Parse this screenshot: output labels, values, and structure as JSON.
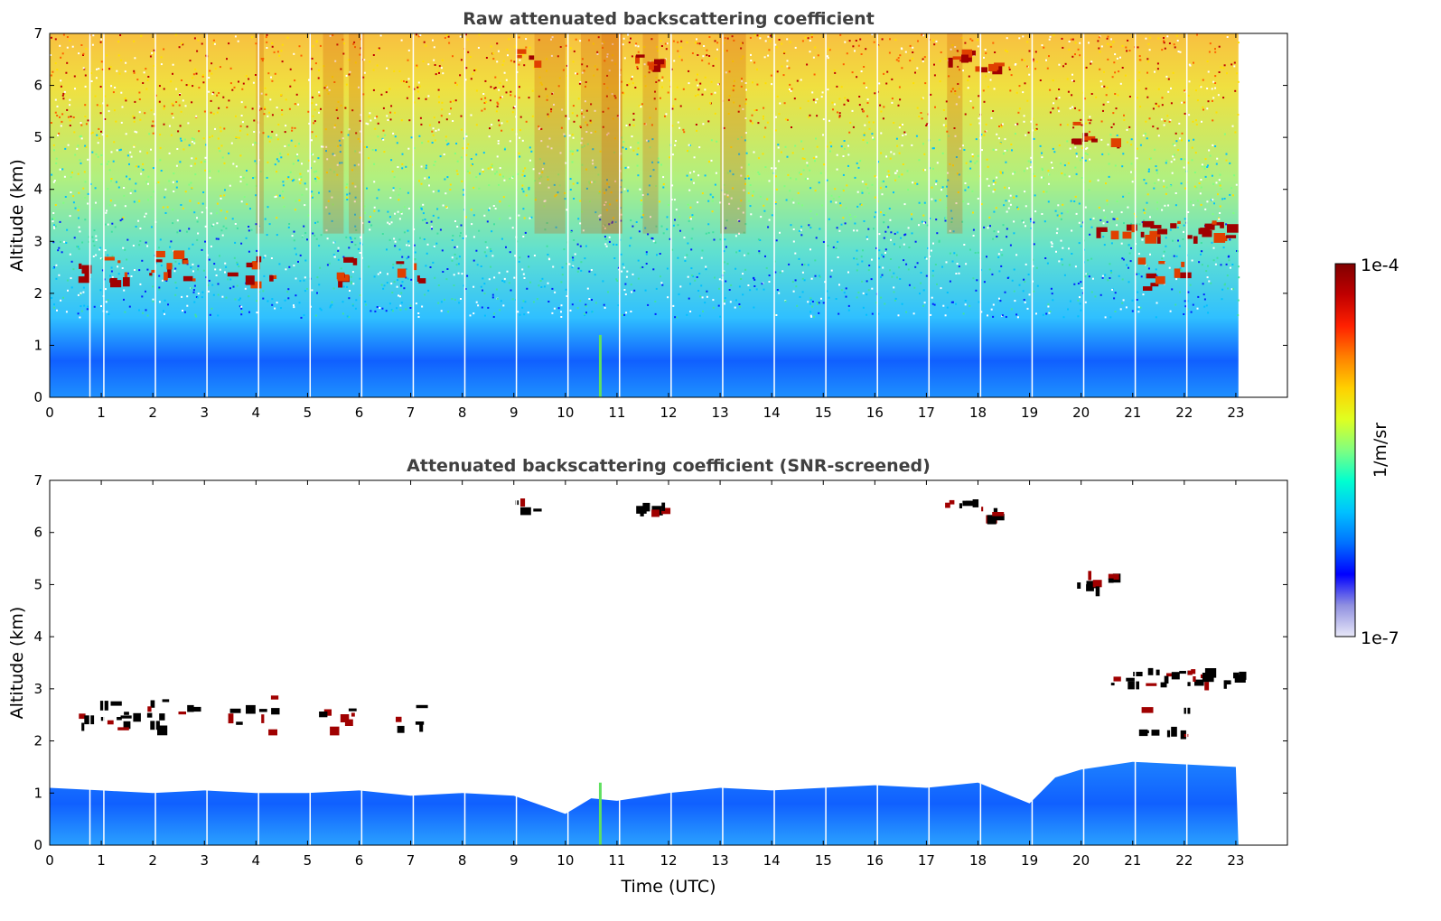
{
  "chart_data": [
    {
      "type": "heatmap",
      "title": "Raw attenuated backscattering coefficient",
      "xlabel": "",
      "ylabel": "Altitude (km)",
      "xlim": [
        0,
        24
      ],
      "ylim": [
        0,
        7
      ],
      "x_ticks": [
        "0",
        "1",
        "2",
        "3",
        "4",
        "5",
        "6",
        "7",
        "8",
        "9",
        "10",
        "11",
        "12",
        "13",
        "14",
        "15",
        "16",
        "17",
        "18",
        "19",
        "20",
        "21",
        "22",
        "23"
      ],
      "y_ticks": [
        "0",
        "1",
        "2",
        "3",
        "4",
        "5",
        "6",
        "7"
      ],
      "data_extent_x": [
        0,
        23.05
      ],
      "data_gaps_hours": [
        0.78,
        1.05,
        2.05,
        3.05,
        4.05,
        5.05,
        6.05,
        7.05,
        8.05,
        9.05,
        10.05,
        11.05,
        12.05,
        13.05,
        14.05,
        15.05,
        16.05,
        17.05,
        18.05,
        19.05,
        20.05,
        21.05,
        22.05
      ],
      "features": [
        {
          "kind": "aerosol_layer",
          "x": [
            0.5,
            2.9
          ],
          "y": [
            2.2,
            2.85
          ],
          "level": "high"
        },
        {
          "kind": "aerosol_layer",
          "x": [
            3.4,
            4.3
          ],
          "y": [
            2.2,
            2.9
          ],
          "level": "high"
        },
        {
          "kind": "aerosol_layer",
          "x": [
            5.2,
            5.9
          ],
          "y": [
            2.2,
            2.7
          ],
          "level": "high"
        },
        {
          "kind": "aerosol_layer",
          "x": [
            6.7,
            7.2
          ],
          "y": [
            2.2,
            2.7
          ],
          "level": "high"
        },
        {
          "kind": "cloud",
          "x": [
            9.0,
            9.4
          ],
          "y": [
            6.45,
            6.7
          ],
          "level": "high"
        },
        {
          "kind": "cloud",
          "x": [
            11.3,
            12.0
          ],
          "y": [
            6.4,
            6.6
          ],
          "level": "high"
        },
        {
          "kind": "cloud",
          "x": [
            17.3,
            17.9
          ],
          "y": [
            6.5,
            6.7
          ],
          "level": "high"
        },
        {
          "kind": "cloud",
          "x": [
            17.8,
            18.4
          ],
          "y": [
            6.3,
            6.5
          ],
          "level": "high"
        },
        {
          "kind": "cloud",
          "x": [
            19.8,
            20.7
          ],
          "y": [
            4.9,
            5.3
          ],
          "level": "high"
        },
        {
          "kind": "cloud",
          "x": [
            20.2,
            23.1
          ],
          "y": [
            3.1,
            3.4
          ],
          "level": "high"
        },
        {
          "kind": "aerosol_layer",
          "x": [
            21.1,
            22.0
          ],
          "y": [
            2.1,
            2.7
          ],
          "level": "high"
        },
        {
          "kind": "boundary_layer",
          "x": [
            0,
            23.05
          ],
          "y": [
            0,
            1.0
          ],
          "level": "low"
        }
      ]
    },
    {
      "type": "heatmap",
      "title": "Attenuated backscattering coefficient (SNR-screened)",
      "xlabel": "Time (UTC)",
      "ylabel": "Altitude (km)",
      "xlim": [
        0,
        24
      ],
      "ylim": [
        0,
        7
      ],
      "x_ticks": [
        "0",
        "1",
        "2",
        "3",
        "4",
        "5",
        "6",
        "7",
        "8",
        "9",
        "10",
        "11",
        "12",
        "13",
        "14",
        "15",
        "16",
        "17",
        "18",
        "19",
        "20",
        "21",
        "22",
        "23"
      ],
      "y_ticks": [
        "0",
        "1",
        "2",
        "3",
        "4",
        "5",
        "6",
        "7"
      ],
      "data_extent_x": [
        0,
        23.05
      ],
      "boundary_layer_top": {
        "x": [
          0,
          1,
          2,
          3,
          4,
          5,
          6,
          7,
          8,
          9,
          10,
          10.5,
          11,
          12,
          13,
          14,
          15,
          16,
          17,
          18,
          19,
          19.5,
          20,
          21,
          22,
          23
        ],
        "y": [
          1.1,
          1.05,
          1.0,
          1.05,
          1.0,
          1.0,
          1.05,
          0.95,
          1.0,
          0.95,
          0.6,
          0.9,
          0.85,
          1.0,
          1.1,
          1.05,
          1.1,
          1.15,
          1.1,
          1.2,
          0.8,
          1.3,
          1.45,
          1.6,
          1.55,
          1.5
        ]
      },
      "features": [
        {
          "kind": "aerosol_layer",
          "x": [
            0.5,
            2.9
          ],
          "y": [
            2.2,
            2.85
          ],
          "level": "high"
        },
        {
          "kind": "aerosol_layer",
          "x": [
            3.4,
            4.3
          ],
          "y": [
            2.2,
            2.9
          ],
          "level": "high"
        },
        {
          "kind": "aerosol_layer",
          "x": [
            5.2,
            5.9
          ],
          "y": [
            2.2,
            2.7
          ],
          "level": "high"
        },
        {
          "kind": "aerosol_layer",
          "x": [
            6.7,
            7.2
          ],
          "y": [
            2.2,
            2.7
          ],
          "level": "high"
        },
        {
          "kind": "cloud",
          "x": [
            9.0,
            9.4
          ],
          "y": [
            6.45,
            6.7
          ],
          "level": "high"
        },
        {
          "kind": "cloud",
          "x": [
            11.3,
            12.0
          ],
          "y": [
            6.4,
            6.6
          ],
          "level": "high"
        },
        {
          "kind": "cloud",
          "x": [
            17.3,
            17.9
          ],
          "y": [
            6.5,
            6.7
          ],
          "level": "high"
        },
        {
          "kind": "cloud",
          "x": [
            17.8,
            18.4
          ],
          "y": [
            6.3,
            6.5
          ],
          "level": "high"
        },
        {
          "kind": "cloud",
          "x": [
            19.8,
            20.7
          ],
          "y": [
            4.9,
            5.3
          ],
          "level": "high"
        },
        {
          "kind": "cloud",
          "x": [
            20.2,
            23.1
          ],
          "y": [
            3.1,
            3.4
          ],
          "level": "high"
        },
        {
          "kind": "aerosol_layer",
          "x": [
            21.1,
            22.0
          ],
          "y": [
            2.1,
            2.7
          ],
          "level": "high"
        }
      ]
    }
  ],
  "colorbar": {
    "label": "1/m/sr",
    "max_label": "1e-4",
    "min_label": "1e-7",
    "scale": "log",
    "colormap": [
      "#e8e8f8",
      "#9090e0",
      "#0000ff",
      "#0070ff",
      "#00c0ff",
      "#00ffd0",
      "#80ff80",
      "#e0ff20",
      "#ffd000",
      "#ff8000",
      "#ff2000",
      "#c00000",
      "#800000"
    ]
  }
}
